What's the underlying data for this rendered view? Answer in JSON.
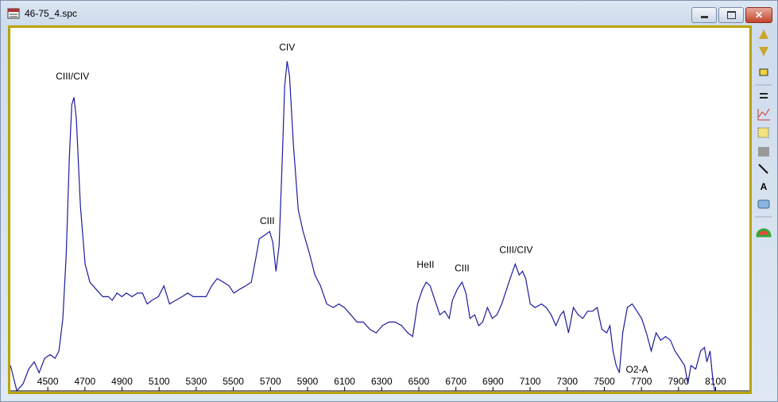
{
  "window": {
    "title": "46-75_4.spc"
  },
  "chart_data": {
    "type": "line",
    "color": "#1c1c9c",
    "x": [
      4299,
      4333,
      4367,
      4397,
      4427,
      4453,
      4483,
      4513,
      4539,
      4560,
      4581,
      4599,
      4616,
      4629,
      4641,
      4654,
      4676,
      4701,
      4727,
      4761,
      4796,
      4826,
      4847,
      4873,
      4899,
      4924,
      4954,
      4984,
      5010,
      5036,
      5061,
      5096,
      5126,
      5156,
      5190,
      5224,
      5254,
      5284,
      5319,
      5353,
      5383,
      5413,
      5447,
      5477,
      5503,
      5533,
      5567,
      5597,
      5619,
      5640,
      5670,
      5696,
      5713,
      5730,
      5747,
      5764,
      5777,
      5790,
      5803,
      5824,
      5850,
      5876,
      5910,
      5940,
      5970,
      6004,
      6039,
      6069,
      6099,
      6133,
      6167,
      6201,
      6236,
      6270,
      6304,
      6339,
      6373,
      6407,
      6441,
      6467,
      6493,
      6519,
      6540,
      6561,
      6587,
      6613,
      6639,
      6664,
      6681,
      6707,
      6733,
      6754,
      6776,
      6801,
      6823,
      6844,
      6870,
      6896,
      6921,
      6947,
      6973,
      6999,
      7020,
      7041,
      7059,
      7076,
      7101,
      7127,
      7161,
      7187,
      7213,
      7239,
      7264,
      7281,
      7307,
      7333,
      7359,
      7384,
      7410,
      7436,
      7461,
      7487,
      7513,
      7530,
      7547,
      7564,
      7581,
      7599,
      7624,
      7650,
      7676,
      7701,
      7727,
      7753,
      7779,
      7804,
      7830,
      7856,
      7881,
      7907,
      7933,
      7950,
      7967,
      7993,
      8019,
      8040,
      8053,
      8070,
      8087,
      8096
    ],
    "values": [
      7,
      0,
      2,
      6,
      8,
      5,
      9,
      10,
      9,
      11,
      20,
      37.5,
      64,
      79,
      81,
      75,
      51,
      35,
      30,
      28,
      26,
      26,
      25,
      27,
      26,
      27,
      26,
      27,
      27,
      24,
      25,
      26,
      29,
      24,
      25,
      26,
      27,
      26,
      26,
      26,
      29,
      31,
      30,
      29,
      27,
      28,
      29,
      30,
      36,
      42,
      43,
      44,
      41,
      33,
      40,
      64,
      84,
      91,
      87,
      68,
      50,
      44,
      38,
      32,
      29,
      24,
      23,
      24,
      23,
      21,
      19,
      19,
      17,
      16,
      18,
      19,
      19,
      18,
      16,
      15,
      24,
      28,
      30,
      29,
      25,
      21,
      22,
      20,
      25,
      28,
      30,
      27,
      20,
      21,
      18,
      19,
      23,
      20,
      21,
      24,
      28,
      32,
      35,
      32,
      33,
      31,
      24,
      23,
      24,
      23,
      21,
      18,
      21,
      22,
      16,
      23,
      21,
      20,
      22,
      22,
      23,
      17,
      16,
      18,
      11,
      7,
      5,
      16,
      23,
      24,
      22,
      20,
      16,
      11,
      16,
      14,
      15,
      14,
      11,
      9,
      7,
      2,
      7,
      6,
      11,
      12,
      8,
      11,
      2,
      0
    ],
    "xlim": [
      4298,
      8282
    ],
    "ylim": [
      0,
      100
    ],
    "xticks": [
      4500,
      4700,
      4900,
      5100,
      5300,
      5500,
      5700,
      5900,
      6100,
      6300,
      6500,
      6700,
      6900,
      7100,
      7300,
      7500,
      7700,
      7900,
      8100
    ],
    "annotations": [
      {
        "text": "CIII/CIV",
        "x": 4633,
        "y": 86
      },
      {
        "text": "CIV",
        "x": 5790,
        "y": 94
      },
      {
        "text": "CIII",
        "x": 5683,
        "y": 46
      },
      {
        "text": "HeII",
        "x": 6536,
        "y": 34
      },
      {
        "text": "CIII",
        "x": 6733,
        "y": 33
      },
      {
        "text": "CIII/CIV",
        "x": 7024,
        "y": 38
      },
      {
        "text": "O2-A",
        "x": 7676,
        "y": 5
      }
    ]
  }
}
